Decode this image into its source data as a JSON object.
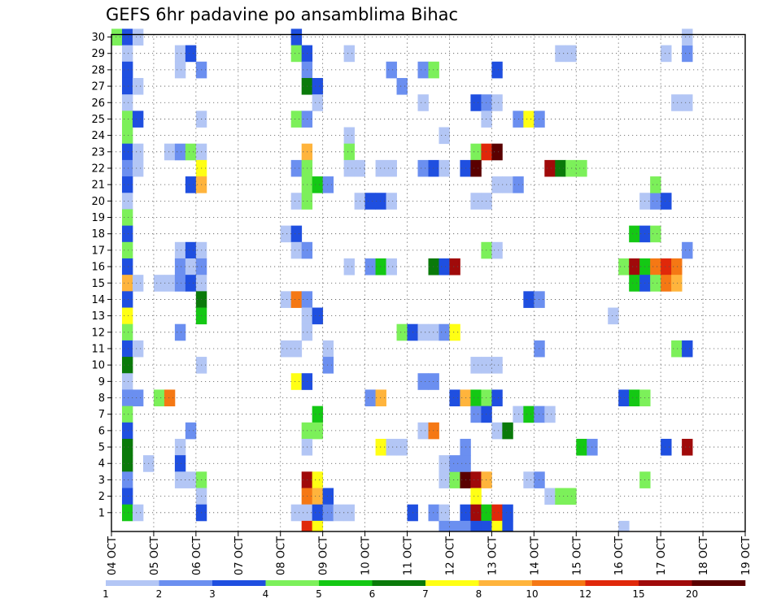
{
  "chart_data": {
    "type": "heatmap",
    "title": "GEFS 6hr padavine po ansamblima Bihac",
    "y_ticks": [
      1,
      2,
      3,
      4,
      5,
      6,
      7,
      8,
      9,
      10,
      11,
      12,
      13,
      14,
      15,
      16,
      17,
      18,
      19,
      20,
      21,
      22,
      23,
      24,
      25,
      26,
      27,
      28,
      29,
      30
    ],
    "ylim": [
      0,
      30
    ],
    "x_tick_labels": [
      "04 OCT",
      "05 OCT",
      "06 OCT",
      "07 OCT",
      "08 OCT",
      "09 OCT",
      "10 OCT",
      "11 OCT",
      "12 OCT",
      "13 OCT",
      "14 OCT",
      "15 OCT",
      "16 OCT",
      "17 OCT",
      "18 OCT",
      "19 OCT"
    ],
    "x_step_hours": 6,
    "x_count": 60,
    "grid": true,
    "colorbar": {
      "colors": [
        "#b3c6f5",
        "#6b8ff0",
        "#1f4fe0",
        "#7cf05a",
        "#14c814",
        "#0a7a0a",
        "#ffff14",
        "#ffb43c",
        "#f57814",
        "#e0280a",
        "#a00a0a",
        "#5a0000"
      ],
      "labels": [
        "1",
        "2",
        "3",
        "4",
        "5",
        "6",
        "7",
        "8",
        "10",
        "12",
        "15",
        "20"
      ]
    },
    "cells": [
      {
        "x": 0,
        "y": 30,
        "l": 4
      },
      {
        "x": 1,
        "y": 30,
        "l": 3
      },
      {
        "x": 2,
        "y": 30,
        "l": 1
      },
      {
        "x": 1,
        "y": 29,
        "l": 1
      },
      {
        "x": 1,
        "y": 28,
        "l": 3
      },
      {
        "x": 1,
        "y": 27,
        "l": 3
      },
      {
        "x": 2,
        "y": 27,
        "l": 1
      },
      {
        "x": 1,
        "y": 26,
        "l": 1
      },
      {
        "x": 1,
        "y": 25,
        "l": 4
      },
      {
        "x": 2,
        "y": 25,
        "l": 3
      },
      {
        "x": 1,
        "y": 24,
        "l": 4
      },
      {
        "x": 1,
        "y": 23,
        "l": 3
      },
      {
        "x": 2,
        "y": 23,
        "l": 1
      },
      {
        "x": 1,
        "y": 22,
        "l": 2
      },
      {
        "x": 2,
        "y": 22,
        "l": 1
      },
      {
        "x": 1,
        "y": 21,
        "l": 3
      },
      {
        "x": 1,
        "y": 20,
        "l": 1
      },
      {
        "x": 1,
        "y": 19,
        "l": 4
      },
      {
        "x": 1,
        "y": 18,
        "l": 3
      },
      {
        "x": 1,
        "y": 17,
        "l": 4
      },
      {
        "x": 1,
        "y": 16,
        "l": 3
      },
      {
        "x": 1,
        "y": 15,
        "l": 8
      },
      {
        "x": 2,
        "y": 15,
        "l": 1
      },
      {
        "x": 1,
        "y": 14,
        "l": 3
      },
      {
        "x": 1,
        "y": 13,
        "l": 7
      },
      {
        "x": 1,
        "y": 12,
        "l": 4
      },
      {
        "x": 1,
        "y": 11,
        "l": 3
      },
      {
        "x": 2,
        "y": 11,
        "l": 1
      },
      {
        "x": 1,
        "y": 10,
        "l": 6
      },
      {
        "x": 1,
        "y": 9,
        "l": 1
      },
      {
        "x": 1,
        "y": 8,
        "l": 2
      },
      {
        "x": 2,
        "y": 8,
        "l": 2
      },
      {
        "x": 1,
        "y": 7,
        "l": 4
      },
      {
        "x": 1,
        "y": 6,
        "l": 3
      },
      {
        "x": 1,
        "y": 5,
        "l": 6
      },
      {
        "x": 1,
        "y": 4,
        "l": 6
      },
      {
        "x": 1,
        "y": 3,
        "l": 2
      },
      {
        "x": 1,
        "y": 2,
        "l": 3
      },
      {
        "x": 1,
        "y": 1,
        "l": 5
      },
      {
        "x": 2,
        "y": 1,
        "l": 1
      },
      {
        "x": 3,
        "y": 4,
        "l": 1
      },
      {
        "x": 4,
        "y": 15,
        "l": 1
      },
      {
        "x": 5,
        "y": 15,
        "l": 1
      },
      {
        "x": 4,
        "y": 8,
        "l": 4
      },
      {
        "x": 5,
        "y": 8,
        "l": 9
      },
      {
        "x": 5,
        "y": 23,
        "l": 1
      },
      {
        "x": 6,
        "y": 23,
        "l": 2
      },
      {
        "x": 6,
        "y": 29,
        "l": 1
      },
      {
        "x": 7,
        "y": 29,
        "l": 3
      },
      {
        "x": 6,
        "y": 28,
        "l": 1
      },
      {
        "x": 8,
        "y": 28,
        "l": 2
      },
      {
        "x": 7,
        "y": 23,
        "l": 4
      },
      {
        "x": 8,
        "y": 23,
        "l": 1
      },
      {
        "x": 8,
        "y": 22,
        "l": 7
      },
      {
        "x": 7,
        "y": 21,
        "l": 3
      },
      {
        "x": 8,
        "y": 21,
        "l": 8
      },
      {
        "x": 6,
        "y": 17,
        "l": 1
      },
      {
        "x": 7,
        "y": 17,
        "l": 3
      },
      {
        "x": 8,
        "y": 17,
        "l": 1
      },
      {
        "x": 6,
        "y": 16,
        "l": 2
      },
      {
        "x": 7,
        "y": 16,
        "l": 1
      },
      {
        "x": 8,
        "y": 16,
        "l": 2
      },
      {
        "x": 6,
        "y": 15,
        "l": 2
      },
      {
        "x": 7,
        "y": 15,
        "l": 3
      },
      {
        "x": 8,
        "y": 15,
        "l": 1
      },
      {
        "x": 8,
        "y": 14,
        "l": 6
      },
      {
        "x": 8,
        "y": 13,
        "l": 5
      },
      {
        "x": 6,
        "y": 12,
        "l": 2
      },
      {
        "x": 8,
        "y": 10,
        "l": 1
      },
      {
        "x": 7,
        "y": 6,
        "l": 2
      },
      {
        "x": 6,
        "y": 5,
        "l": 1
      },
      {
        "x": 6,
        "y": 4,
        "l": 3
      },
      {
        "x": 6,
        "y": 3,
        "l": 1
      },
      {
        "x": 7,
        "y": 3,
        "l": 1
      },
      {
        "x": 8,
        "y": 3,
        "l": 4
      },
      {
        "x": 8,
        "y": 2,
        "l": 1
      },
      {
        "x": 8,
        "y": 1,
        "l": 3
      },
      {
        "x": 8,
        "y": 25,
        "l": 1
      },
      {
        "x": 17,
        "y": 30,
        "l": 3
      },
      {
        "x": 17,
        "y": 29,
        "l": 4
      },
      {
        "x": 18,
        "y": 29,
        "l": 3
      },
      {
        "x": 18,
        "y": 28,
        "l": 2
      },
      {
        "x": 18,
        "y": 27,
        "l": 6
      },
      {
        "x": 19,
        "y": 27,
        "l": 3
      },
      {
        "x": 19,
        "y": 26,
        "l": 1
      },
      {
        "x": 17,
        "y": 25,
        "l": 4
      },
      {
        "x": 18,
        "y": 25,
        "l": 2
      },
      {
        "x": 18,
        "y": 23,
        "l": 8
      },
      {
        "x": 17,
        "y": 22,
        "l": 2
      },
      {
        "x": 18,
        "y": 22,
        "l": 4
      },
      {
        "x": 18,
        "y": 21,
        "l": 4
      },
      {
        "x": 19,
        "y": 21,
        "l": 5
      },
      {
        "x": 20,
        "y": 21,
        "l": 2
      },
      {
        "x": 17,
        "y": 20,
        "l": 1
      },
      {
        "x": 18,
        "y": 20,
        "l": 4
      },
      {
        "x": 16,
        "y": 18,
        "l": 1
      },
      {
        "x": 17,
        "y": 18,
        "l": 3
      },
      {
        "x": 17,
        "y": 17,
        "l": 1
      },
      {
        "x": 18,
        "y": 17,
        "l": 2
      },
      {
        "x": 16,
        "y": 14,
        "l": 1
      },
      {
        "x": 17,
        "y": 14,
        "l": 9
      },
      {
        "x": 18,
        "y": 14,
        "l": 2
      },
      {
        "x": 18,
        "y": 13,
        "l": 1
      },
      {
        "x": 19,
        "y": 13,
        "l": 3
      },
      {
        "x": 18,
        "y": 12,
        "l": 1
      },
      {
        "x": 16,
        "y": 11,
        "l": 1
      },
      {
        "x": 17,
        "y": 11,
        "l": 1
      },
      {
        "x": 20,
        "y": 11,
        "l": 1
      },
      {
        "x": 20,
        "y": 10,
        "l": 2
      },
      {
        "x": 17,
        "y": 9,
        "l": 7
      },
      {
        "x": 18,
        "y": 9,
        "l": 3
      },
      {
        "x": 19,
        "y": 7,
        "l": 5
      },
      {
        "x": 18,
        "y": 6,
        "l": 4
      },
      {
        "x": 19,
        "y": 6,
        "l": 4
      },
      {
        "x": 18,
        "y": 5,
        "l": 1
      },
      {
        "x": 18,
        "y": 3,
        "l": 11
      },
      {
        "x": 19,
        "y": 3,
        "l": 7
      },
      {
        "x": 18,
        "y": 2,
        "l": 9
      },
      {
        "x": 19,
        "y": 2,
        "l": 8
      },
      {
        "x": 20,
        "y": 2,
        "l": 3
      },
      {
        "x": 17,
        "y": 1,
        "l": 1
      },
      {
        "x": 18,
        "y": 1,
        "l": 1
      },
      {
        "x": 19,
        "y": 1,
        "l": 3
      },
      {
        "x": 20,
        "y": 1,
        "l": 2
      },
      {
        "x": 18,
        "y": 0,
        "l": 10
      },
      {
        "x": 19,
        "y": 0,
        "l": 7
      },
      {
        "x": 22,
        "y": 29,
        "l": 1
      },
      {
        "x": 22,
        "y": 24,
        "l": 1
      },
      {
        "x": 22,
        "y": 23,
        "l": 4
      },
      {
        "x": 22,
        "y": 22,
        "l": 1
      },
      {
        "x": 23,
        "y": 22,
        "l": 1
      },
      {
        "x": 25,
        "y": 22,
        "l": 1
      },
      {
        "x": 26,
        "y": 22,
        "l": 1
      },
      {
        "x": 23,
        "y": 20,
        "l": 1
      },
      {
        "x": 24,
        "y": 20,
        "l": 3
      },
      {
        "x": 25,
        "y": 20,
        "l": 3
      },
      {
        "x": 26,
        "y": 20,
        "l": 1
      },
      {
        "x": 22,
        "y": 16,
        "l": 1
      },
      {
        "x": 24,
        "y": 16,
        "l": 2
      },
      {
        "x": 25,
        "y": 16,
        "l": 5
      },
      {
        "x": 26,
        "y": 16,
        "l": 1
      },
      {
        "x": 21,
        "y": 1,
        "l": 1
      },
      {
        "x": 22,
        "y": 1,
        "l": 1
      },
      {
        "x": 24,
        "y": 8,
        "l": 2
      },
      {
        "x": 25,
        "y": 8,
        "l": 8
      },
      {
        "x": 25,
        "y": 5,
        "l": 7
      },
      {
        "x": 26,
        "y": 5,
        "l": 1
      },
      {
        "x": 27,
        "y": 5,
        "l": 1
      },
      {
        "x": 26,
        "y": 28,
        "l": 2
      },
      {
        "x": 27,
        "y": 27,
        "l": 2
      },
      {
        "x": 27,
        "y": 12,
        "l": 4
      },
      {
        "x": 28,
        "y": 12,
        "l": 3
      },
      {
        "x": 29,
        "y": 12,
        "l": 1
      },
      {
        "x": 30,
        "y": 12,
        "l": 1
      },
      {
        "x": 31,
        "y": 12,
        "l": 2
      },
      {
        "x": 32,
        "y": 12,
        "l": 7
      },
      {
        "x": 29,
        "y": 28,
        "l": 2
      },
      {
        "x": 30,
        "y": 28,
        "l": 4
      },
      {
        "x": 29,
        "y": 26,
        "l": 1
      },
      {
        "x": 31,
        "y": 24,
        "l": 1
      },
      {
        "x": 29,
        "y": 22,
        "l": 2
      },
      {
        "x": 30,
        "y": 22,
        "l": 3
      },
      {
        "x": 31,
        "y": 22,
        "l": 1
      },
      {
        "x": 30,
        "y": 16,
        "l": 6
      },
      {
        "x": 31,
        "y": 16,
        "l": 3
      },
      {
        "x": 32,
        "y": 16,
        "l": 11
      },
      {
        "x": 29,
        "y": 9,
        "l": 2
      },
      {
        "x": 30,
        "y": 9,
        "l": 2
      },
      {
        "x": 29,
        "y": 6,
        "l": 1
      },
      {
        "x": 30,
        "y": 6,
        "l": 9
      },
      {
        "x": 28,
        "y": 1,
        "l": 3
      },
      {
        "x": 30,
        "y": 1,
        "l": 2
      },
      {
        "x": 31,
        "y": 1,
        "l": 1
      },
      {
        "x": 31,
        "y": 0,
        "l": 2
      },
      {
        "x": 32,
        "y": 0,
        "l": 2
      },
      {
        "x": 31,
        "y": 3,
        "l": 1
      },
      {
        "x": 32,
        "y": 3,
        "l": 4
      },
      {
        "x": 31,
        "y": 4,
        "l": 1
      },
      {
        "x": 32,
        "y": 4,
        "l": 2
      },
      {
        "x": 33,
        "y": 3,
        "l": 12
      },
      {
        "x": 34,
        "y": 3,
        "l": 11
      },
      {
        "x": 35,
        "y": 3,
        "l": 8
      },
      {
        "x": 33,
        "y": 4,
        "l": 2
      },
      {
        "x": 33,
        "y": 5,
        "l": 2
      },
      {
        "x": 33,
        "y": 1,
        "l": 3
      },
      {
        "x": 33,
        "y": 0,
        "l": 2
      },
      {
        "x": 34,
        "y": 23,
        "l": 4
      },
      {
        "x": 35,
        "y": 23,
        "l": 10
      },
      {
        "x": 36,
        "y": 23,
        "l": 12
      },
      {
        "x": 33,
        "y": 22,
        "l": 3
      },
      {
        "x": 34,
        "y": 22,
        "l": 12
      },
      {
        "x": 34,
        "y": 26,
        "l": 3
      },
      {
        "x": 35,
        "y": 26,
        "l": 2
      },
      {
        "x": 36,
        "y": 26,
        "l": 1
      },
      {
        "x": 35,
        "y": 25,
        "l": 1
      },
      {
        "x": 35,
        "y": 20,
        "l": 1
      },
      {
        "x": 34,
        "y": 20,
        "l": 1
      },
      {
        "x": 36,
        "y": 21,
        "l": 1
      },
      {
        "x": 37,
        "y": 21,
        "l": 1
      },
      {
        "x": 35,
        "y": 17,
        "l": 4
      },
      {
        "x": 36,
        "y": 17,
        "l": 1
      },
      {
        "x": 36,
        "y": 28,
        "l": 3
      },
      {
        "x": 32,
        "y": 8,
        "l": 3
      },
      {
        "x": 33,
        "y": 8,
        "l": 8
      },
      {
        "x": 34,
        "y": 8,
        "l": 5
      },
      {
        "x": 35,
        "y": 8,
        "l": 4
      },
      {
        "x": 36,
        "y": 8,
        "l": 3
      },
      {
        "x": 34,
        "y": 7,
        "l": 2
      },
      {
        "x": 35,
        "y": 7,
        "l": 3
      },
      {
        "x": 36,
        "y": 6,
        "l": 1
      },
      {
        "x": 37,
        "y": 6,
        "l": 6
      },
      {
        "x": 34,
        "y": 10,
        "l": 1
      },
      {
        "x": 35,
        "y": 10,
        "l": 1
      },
      {
        "x": 36,
        "y": 10,
        "l": 1
      },
      {
        "x": 34,
        "y": 2,
        "l": 7
      },
      {
        "x": 34,
        "y": 1,
        "l": 11
      },
      {
        "x": 35,
        "y": 1,
        "l": 5
      },
      {
        "x": 36,
        "y": 1,
        "l": 10
      },
      {
        "x": 37,
        "y": 1,
        "l": 3
      },
      {
        "x": 34,
        "y": 0,
        "l": 3
      },
      {
        "x": 35,
        "y": 0,
        "l": 3
      },
      {
        "x": 36,
        "y": 0,
        "l": 7
      },
      {
        "x": 37,
        "y": 0,
        "l": 3
      },
      {
        "x": 38,
        "y": 25,
        "l": 2
      },
      {
        "x": 39,
        "y": 25,
        "l": 7
      },
      {
        "x": 40,
        "y": 25,
        "l": 2
      },
      {
        "x": 38,
        "y": 21,
        "l": 2
      },
      {
        "x": 39,
        "y": 14,
        "l": 3
      },
      {
        "x": 40,
        "y": 14,
        "l": 2
      },
      {
        "x": 40,
        "y": 11,
        "l": 2
      },
      {
        "x": 38,
        "y": 7,
        "l": 1
      },
      {
        "x": 39,
        "y": 7,
        "l": 5
      },
      {
        "x": 40,
        "y": 7,
        "l": 2
      },
      {
        "x": 41,
        "y": 7,
        "l": 1
      },
      {
        "x": 39,
        "y": 3,
        "l": 1
      },
      {
        "x": 40,
        "y": 3,
        "l": 2
      },
      {
        "x": 41,
        "y": 2,
        "l": 1
      },
      {
        "x": 42,
        "y": 2,
        "l": 4
      },
      {
        "x": 43,
        "y": 2,
        "l": 4
      },
      {
        "x": 41,
        "y": 22,
        "l": 11
      },
      {
        "x": 42,
        "y": 22,
        "l": 6
      },
      {
        "x": 43,
        "y": 22,
        "l": 4
      },
      {
        "x": 44,
        "y": 22,
        "l": 4
      },
      {
        "x": 42,
        "y": 29,
        "l": 1
      },
      {
        "x": 43,
        "y": 29,
        "l": 1
      },
      {
        "x": 44,
        "y": 5,
        "l": 5
      },
      {
        "x": 45,
        "y": 5,
        "l": 2
      },
      {
        "x": 48,
        "y": 0,
        "l": 1
      },
      {
        "x": 48,
        "y": 16,
        "l": 4
      },
      {
        "x": 49,
        "y": 16,
        "l": 11
      },
      {
        "x": 50,
        "y": 16,
        "l": 5
      },
      {
        "x": 51,
        "y": 16,
        "l": 9
      },
      {
        "x": 52,
        "y": 16,
        "l": 10
      },
      {
        "x": 53,
        "y": 16,
        "l": 9
      },
      {
        "x": 49,
        "y": 15,
        "l": 5
      },
      {
        "x": 50,
        "y": 15,
        "l": 3
      },
      {
        "x": 51,
        "y": 15,
        "l": 4
      },
      {
        "x": 52,
        "y": 15,
        "l": 9
      },
      {
        "x": 53,
        "y": 15,
        "l": 8
      },
      {
        "x": 49,
        "y": 18,
        "l": 5
      },
      {
        "x": 50,
        "y": 18,
        "l": 3
      },
      {
        "x": 51,
        "y": 18,
        "l": 4
      },
      {
        "x": 50,
        "y": 20,
        "l": 1
      },
      {
        "x": 51,
        "y": 20,
        "l": 2
      },
      {
        "x": 52,
        "y": 20,
        "l": 3
      },
      {
        "x": 51,
        "y": 21,
        "l": 4
      },
      {
        "x": 47,
        "y": 13,
        "l": 1
      },
      {
        "x": 53,
        "y": 11,
        "l": 4
      },
      {
        "x": 54,
        "y": 11,
        "l": 3
      },
      {
        "x": 48,
        "y": 8,
        "l": 3
      },
      {
        "x": 49,
        "y": 8,
        "l": 5
      },
      {
        "x": 50,
        "y": 8,
        "l": 4
      },
      {
        "x": 52,
        "y": 5,
        "l": 3
      },
      {
        "x": 54,
        "y": 5,
        "l": 11
      },
      {
        "x": 50,
        "y": 3,
        "l": 4
      },
      {
        "x": 52,
        "y": 29,
        "l": 1
      },
      {
        "x": 54,
        "y": 29,
        "l": 2
      },
      {
        "x": 53,
        "y": 26,
        "l": 1
      },
      {
        "x": 54,
        "y": 26,
        "l": 1
      },
      {
        "x": 54,
        "y": 17,
        "l": 2
      },
      {
        "x": 54,
        "y": 30,
        "l": 1
      }
    ]
  }
}
